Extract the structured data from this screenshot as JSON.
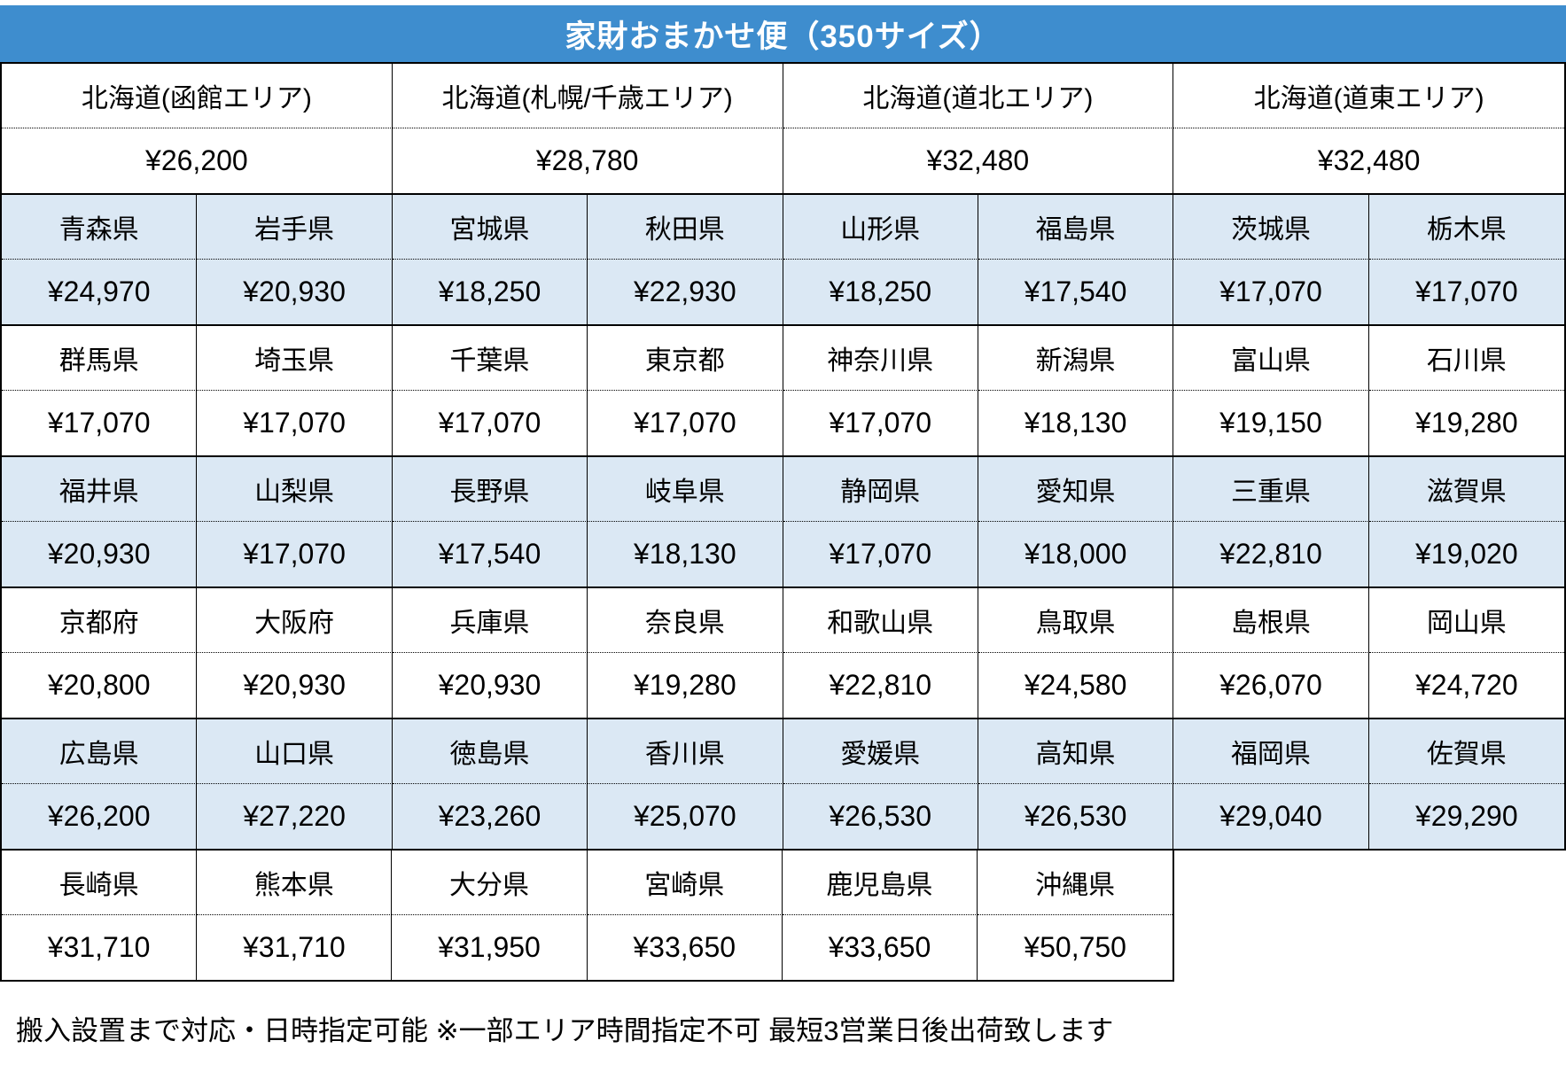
{
  "title": "家財おまかせ便（350サイズ）",
  "colors": {
    "header_bg": "#3E8DCE",
    "row_shade": "#DBE8F4",
    "border": "#000000"
  },
  "hokkaido": {
    "areas": [
      {
        "name": "北海道(函館エリア)",
        "price": "¥26,200"
      },
      {
        "name": "北海道(札幌/千歳エリア)",
        "price": "¥28,780"
      },
      {
        "name": "北海道(道北エリア)",
        "price": "¥32,480"
      },
      {
        "name": "北海道(道東エリア)",
        "price": "¥32,480"
      }
    ]
  },
  "groups": [
    {
      "shade": true,
      "cells": [
        {
          "name": "青森県",
          "price": "¥24,970"
        },
        {
          "name": "岩手県",
          "price": "¥20,930"
        },
        {
          "name": "宮城県",
          "price": "¥18,250"
        },
        {
          "name": "秋田県",
          "price": "¥22,930"
        },
        {
          "name": "山形県",
          "price": "¥18,250"
        },
        {
          "name": "福島県",
          "price": "¥17,540"
        },
        {
          "name": "茨城県",
          "price": "¥17,070"
        },
        {
          "name": "栃木県",
          "price": "¥17,070"
        }
      ]
    },
    {
      "shade": false,
      "cells": [
        {
          "name": "群馬県",
          "price": "¥17,070"
        },
        {
          "name": "埼玉県",
          "price": "¥17,070"
        },
        {
          "name": "千葉県",
          "price": "¥17,070"
        },
        {
          "name": "東京都",
          "price": "¥17,070"
        },
        {
          "name": "神奈川県",
          "price": "¥17,070"
        },
        {
          "name": "新潟県",
          "price": "¥18,130"
        },
        {
          "name": "富山県",
          "price": "¥19,150"
        },
        {
          "name": "石川県",
          "price": "¥19,280"
        }
      ]
    },
    {
      "shade": true,
      "cells": [
        {
          "name": "福井県",
          "price": "¥20,930"
        },
        {
          "name": "山梨県",
          "price": "¥17,070"
        },
        {
          "name": "長野県",
          "price": "¥17,540"
        },
        {
          "name": "岐阜県",
          "price": "¥18,130"
        },
        {
          "name": "静岡県",
          "price": "¥17,070"
        },
        {
          "name": "愛知県",
          "price": "¥18,000"
        },
        {
          "name": "三重県",
          "price": "¥22,810"
        },
        {
          "name": "滋賀県",
          "price": "¥19,020"
        }
      ]
    },
    {
      "shade": false,
      "cells": [
        {
          "name": "京都府",
          "price": "¥20,800"
        },
        {
          "name": "大阪府",
          "price": "¥20,930"
        },
        {
          "name": "兵庫県",
          "price": "¥20,930"
        },
        {
          "name": "奈良県",
          "price": "¥19,280"
        },
        {
          "name": "和歌山県",
          "price": "¥22,810"
        },
        {
          "name": "鳥取県",
          "price": "¥24,580"
        },
        {
          "name": "島根県",
          "price": "¥26,070"
        },
        {
          "name": "岡山県",
          "price": "¥24,720"
        }
      ]
    },
    {
      "shade": true,
      "cells": [
        {
          "name": "広島県",
          "price": "¥26,200"
        },
        {
          "name": "山口県",
          "price": "¥27,220"
        },
        {
          "name": "徳島県",
          "price": "¥23,260"
        },
        {
          "name": "香川県",
          "price": "¥25,070"
        },
        {
          "name": "愛媛県",
          "price": "¥26,530"
        },
        {
          "name": "高知県",
          "price": "¥26,530"
        },
        {
          "name": "福岡県",
          "price": "¥29,040"
        },
        {
          "name": "佐賀県",
          "price": "¥29,290"
        }
      ]
    },
    {
      "shade": false,
      "last": true,
      "cells": [
        {
          "name": "長崎県",
          "price": "¥31,710"
        },
        {
          "name": "熊本県",
          "price": "¥31,710"
        },
        {
          "name": "大分県",
          "price": "¥31,950"
        },
        {
          "name": "宮崎県",
          "price": "¥33,650"
        },
        {
          "name": "鹿児島県",
          "price": "¥33,650"
        },
        {
          "name": "沖縄県",
          "price": "¥50,750"
        }
      ]
    }
  ],
  "footer": "搬入設置まで対応・日時指定可能 ※一部エリア時間指定不可 最短3営業日後出荷致します"
}
